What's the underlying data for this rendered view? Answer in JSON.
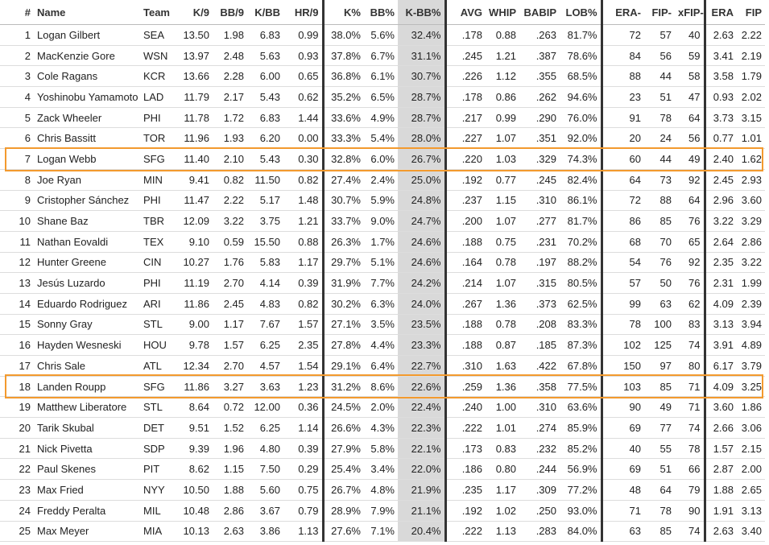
{
  "table": {
    "columns": [
      "#",
      "Name",
      "Team",
      "K/9",
      "BB/9",
      "K/BB",
      "HR/9",
      "K%",
      "BB%",
      "K-BB%",
      "AVG",
      "WHIP",
      "BABIP",
      "LOB%",
      "ERA-",
      "FIP-",
      "xFIP-",
      "ERA",
      "FIP"
    ],
    "sort_column": 9,
    "group_dividers_after": [
      6,
      9,
      13,
      16
    ],
    "highlighted_rows": [
      6,
      17
    ],
    "highlight_color": "#f39a2e",
    "rows": [
      [
        "1",
        "Logan Gilbert",
        "SEA",
        "13.50",
        "1.98",
        "6.83",
        "0.99",
        "38.0%",
        "5.6%",
        "32.4%",
        ".178",
        "0.88",
        ".263",
        "81.7%",
        "72",
        "57",
        "40",
        "2.63",
        "2.22"
      ],
      [
        "2",
        "MacKenzie Gore",
        "WSN",
        "13.97",
        "2.48",
        "5.63",
        "0.93",
        "37.8%",
        "6.7%",
        "31.1%",
        ".245",
        "1.21",
        ".387",
        "78.6%",
        "84",
        "56",
        "59",
        "3.41",
        "2.19"
      ],
      [
        "3",
        "Cole Ragans",
        "KCR",
        "13.66",
        "2.28",
        "6.00",
        "0.65",
        "36.8%",
        "6.1%",
        "30.7%",
        ".226",
        "1.12",
        ".355",
        "68.5%",
        "88",
        "44",
        "58",
        "3.58",
        "1.79"
      ],
      [
        "4",
        "Yoshinobu Yamamoto",
        "LAD",
        "11.79",
        "2.17",
        "5.43",
        "0.62",
        "35.2%",
        "6.5%",
        "28.7%",
        ".178",
        "0.86",
        ".262",
        "94.6%",
        "23",
        "51",
        "47",
        "0.93",
        "2.02"
      ],
      [
        "5",
        "Zack Wheeler",
        "PHI",
        "11.78",
        "1.72",
        "6.83",
        "1.44",
        "33.6%",
        "4.9%",
        "28.7%",
        ".217",
        "0.99",
        ".290",
        "76.0%",
        "91",
        "78",
        "64",
        "3.73",
        "3.15"
      ],
      [
        "6",
        "Chris Bassitt",
        "TOR",
        "11.96",
        "1.93",
        "6.20",
        "0.00",
        "33.3%",
        "5.4%",
        "28.0%",
        ".227",
        "1.07",
        ".351",
        "92.0%",
        "20",
        "24",
        "56",
        "0.77",
        "1.01"
      ],
      [
        "7",
        "Logan Webb",
        "SFG",
        "11.40",
        "2.10",
        "5.43",
        "0.30",
        "32.8%",
        "6.0%",
        "26.7%",
        ".220",
        "1.03",
        ".329",
        "74.3%",
        "60",
        "44",
        "49",
        "2.40",
        "1.62"
      ],
      [
        "8",
        "Joe Ryan",
        "MIN",
        "9.41",
        "0.82",
        "11.50",
        "0.82",
        "27.4%",
        "2.4%",
        "25.0%",
        ".192",
        "0.77",
        ".245",
        "82.4%",
        "64",
        "73",
        "92",
        "2.45",
        "2.93"
      ],
      [
        "9",
        "Cristopher Sánchez",
        "PHI",
        "11.47",
        "2.22",
        "5.17",
        "1.48",
        "30.7%",
        "5.9%",
        "24.8%",
        ".237",
        "1.15",
        ".310",
        "86.1%",
        "72",
        "88",
        "64",
        "2.96",
        "3.60"
      ],
      [
        "10",
        "Shane Baz",
        "TBR",
        "12.09",
        "3.22",
        "3.75",
        "1.21",
        "33.7%",
        "9.0%",
        "24.7%",
        ".200",
        "1.07",
        ".277",
        "81.7%",
        "86",
        "85",
        "76",
        "3.22",
        "3.29"
      ],
      [
        "11",
        "Nathan Eovaldi",
        "TEX",
        "9.10",
        "0.59",
        "15.50",
        "0.88",
        "26.3%",
        "1.7%",
        "24.6%",
        ".188",
        "0.75",
        ".231",
        "70.2%",
        "68",
        "70",
        "65",
        "2.64",
        "2.86"
      ],
      [
        "12",
        "Hunter Greene",
        "CIN",
        "10.27",
        "1.76",
        "5.83",
        "1.17",
        "29.7%",
        "5.1%",
        "24.6%",
        ".164",
        "0.78",
        ".197",
        "88.2%",
        "54",
        "76",
        "92",
        "2.35",
        "3.22"
      ],
      [
        "13",
        "Jesús Luzardo",
        "PHI",
        "11.19",
        "2.70",
        "4.14",
        "0.39",
        "31.9%",
        "7.7%",
        "24.2%",
        ".214",
        "1.07",
        ".315",
        "80.5%",
        "57",
        "50",
        "76",
        "2.31",
        "1.99"
      ],
      [
        "14",
        "Eduardo Rodriguez",
        "ARI",
        "11.86",
        "2.45",
        "4.83",
        "0.82",
        "30.2%",
        "6.3%",
        "24.0%",
        ".267",
        "1.36",
        ".373",
        "62.5%",
        "99",
        "63",
        "62",
        "4.09",
        "2.39"
      ],
      [
        "15",
        "Sonny Gray",
        "STL",
        "9.00",
        "1.17",
        "7.67",
        "1.57",
        "27.1%",
        "3.5%",
        "23.5%",
        ".188",
        "0.78",
        ".208",
        "83.3%",
        "78",
        "100",
        "83",
        "3.13",
        "3.94"
      ],
      [
        "16",
        "Hayden Wesneski",
        "HOU",
        "9.78",
        "1.57",
        "6.25",
        "2.35",
        "27.8%",
        "4.4%",
        "23.3%",
        ".188",
        "0.87",
        ".185",
        "87.3%",
        "102",
        "125",
        "74",
        "3.91",
        "4.89"
      ],
      [
        "17",
        "Chris Sale",
        "ATL",
        "12.34",
        "2.70",
        "4.57",
        "1.54",
        "29.1%",
        "6.4%",
        "22.7%",
        ".310",
        "1.63",
        ".422",
        "67.8%",
        "150",
        "97",
        "80",
        "6.17",
        "3.79"
      ],
      [
        "18",
        "Landen Roupp",
        "SFG",
        "11.86",
        "3.27",
        "3.63",
        "1.23",
        "31.2%",
        "8.6%",
        "22.6%",
        ".259",
        "1.36",
        ".358",
        "77.5%",
        "103",
        "85",
        "71",
        "4.09",
        "3.25"
      ],
      [
        "19",
        "Matthew Liberatore",
        "STL",
        "8.64",
        "0.72",
        "12.00",
        "0.36",
        "24.5%",
        "2.0%",
        "22.4%",
        ".240",
        "1.00",
        ".310",
        "63.6%",
        "90",
        "49",
        "71",
        "3.60",
        "1.86"
      ],
      [
        "20",
        "Tarik Skubal",
        "DET",
        "9.51",
        "1.52",
        "6.25",
        "1.14",
        "26.6%",
        "4.3%",
        "22.3%",
        ".222",
        "1.01",
        ".274",
        "85.9%",
        "69",
        "77",
        "74",
        "2.66",
        "3.06"
      ],
      [
        "21",
        "Nick Pivetta",
        "SDP",
        "9.39",
        "1.96",
        "4.80",
        "0.39",
        "27.9%",
        "5.8%",
        "22.1%",
        ".173",
        "0.83",
        ".232",
        "85.2%",
        "40",
        "55",
        "78",
        "1.57",
        "2.15"
      ],
      [
        "22",
        "Paul Skenes",
        "PIT",
        "8.62",
        "1.15",
        "7.50",
        "0.29",
        "25.4%",
        "3.4%",
        "22.0%",
        ".186",
        "0.80",
        ".244",
        "56.9%",
        "69",
        "51",
        "66",
        "2.87",
        "2.00"
      ],
      [
        "23",
        "Max Fried",
        "NYY",
        "10.50",
        "1.88",
        "5.60",
        "0.75",
        "26.7%",
        "4.8%",
        "21.9%",
        ".235",
        "1.17",
        ".309",
        "77.2%",
        "48",
        "64",
        "79",
        "1.88",
        "2.65"
      ],
      [
        "24",
        "Freddy Peralta",
        "MIL",
        "10.48",
        "2.86",
        "3.67",
        "0.79",
        "28.9%",
        "7.9%",
        "21.1%",
        ".192",
        "1.02",
        ".250",
        "93.0%",
        "71",
        "78",
        "90",
        "1.91",
        "3.13"
      ],
      [
        "25",
        "Max Meyer",
        "MIA",
        "10.13",
        "2.63",
        "3.86",
        "1.13",
        "27.6%",
        "7.1%",
        "20.4%",
        ".222",
        "1.13",
        ".283",
        "84.0%",
        "63",
        "85",
        "74",
        "2.63",
        "3.40"
      ]
    ]
  }
}
